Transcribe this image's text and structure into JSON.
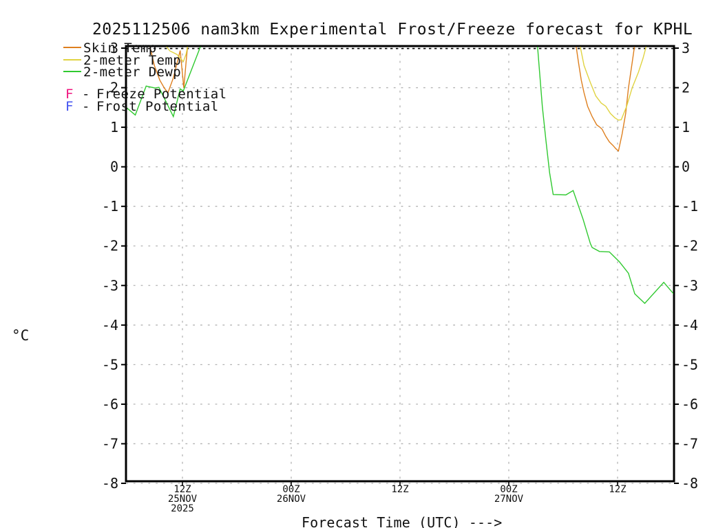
{
  "chart_data": {
    "type": "line",
    "title": "2025112506 nam3km Experimental Frost/Freeze forecast for KPHL",
    "xlabel": "Forecast Time (UTC) --->",
    "ylabel": "°C",
    "ylim": [
      -8,
      3
    ],
    "x_axis_span": "06Z 25NOV2025 to 18Z 27NOV2025 (hours from run start)",
    "grid": true,
    "legend_position": "top-left",
    "y_ticks": [
      3,
      2,
      1,
      0,
      -1,
      -2,
      -3,
      -4,
      -5,
      -6,
      -7,
      -8
    ],
    "x_ticks": [
      {
        "hour": 6,
        "lines": [
          "12Z",
          "25NOV",
          "2025"
        ]
      },
      {
        "hour": 18,
        "lines": [
          "00Z",
          "26NOV"
        ]
      },
      {
        "hour": 30,
        "lines": [
          "12Z"
        ]
      },
      {
        "hour": 42,
        "lines": [
          "00Z",
          "27NOV"
        ]
      },
      {
        "hour": 54,
        "lines": [
          "12Z"
        ]
      }
    ],
    "series": [
      {
        "name": "Skin Temp",
        "color": "#de7f1e",
        "segments": [
          [
            [
              2.2,
              3.25
            ],
            [
              2.9,
              2.56
            ],
            [
              3.5,
              2.19
            ],
            [
              4.0,
              1.99
            ],
            [
              4.4,
              1.87
            ],
            [
              5.0,
              2.25
            ],
            [
              5.5,
              2.71
            ],
            [
              5.75,
              2.94
            ],
            [
              6.15,
              1.99
            ],
            [
              6.4,
              2.65
            ],
            [
              6.65,
              3.25
            ]
          ],
          [
            [
              49.3,
              3.25
            ],
            [
              49.7,
              2.62
            ],
            [
              50.0,
              2.19
            ],
            [
              50.3,
              1.87
            ],
            [
              50.7,
              1.53
            ],
            [
              51.2,
              1.27
            ],
            [
              51.7,
              1.06
            ],
            [
              52.0,
              1.01
            ],
            [
              52.3,
              0.95
            ],
            [
              52.7,
              0.77
            ],
            [
              53.1,
              0.63
            ],
            [
              53.5,
              0.54
            ],
            [
              53.8,
              0.46
            ],
            [
              54.1,
              0.4
            ],
            [
              54.5,
              0.83
            ],
            [
              54.9,
              1.35
            ],
            [
              55.2,
              1.99
            ],
            [
              55.6,
              2.62
            ],
            [
              56.0,
              3.25
            ]
          ]
        ]
      },
      {
        "name": "2-meter Temp",
        "color": "#e0d341",
        "segments": [
          [
            [
              3.7,
              3.2
            ],
            [
              4.6,
              2.93
            ],
            [
              5.4,
              2.84
            ],
            [
              5.9,
              2.71
            ],
            [
              6.1,
              2.66
            ],
            [
              6.4,
              2.85
            ],
            [
              6.7,
              3.2
            ]
          ],
          [
            [
              49.7,
              3.25
            ],
            [
              50.3,
              2.56
            ],
            [
              51.0,
              2.13
            ],
            [
              51.6,
              1.79
            ],
            [
              52.2,
              1.61
            ],
            [
              52.7,
              1.53
            ],
            [
              53.2,
              1.35
            ],
            [
              53.7,
              1.24
            ],
            [
              54.1,
              1.18
            ],
            [
              54.4,
              1.19
            ],
            [
              55.0,
              1.53
            ],
            [
              55.6,
              1.99
            ],
            [
              56.3,
              2.39
            ],
            [
              56.8,
              2.74
            ],
            [
              57.4,
              3.25
            ]
          ]
        ]
      },
      {
        "name": "2-meter Dewp",
        "color": "#2fc92f",
        "segments": [
          [
            [
              -0.2,
              1.5
            ],
            [
              0.8,
              1.31
            ],
            [
              2.0,
              2.04
            ],
            [
              3.0,
              1.99
            ],
            [
              3.4,
              2.01
            ],
            [
              5.0,
              1.27
            ],
            [
              5.75,
              1.97
            ],
            [
              6.1,
              1.92
            ],
            [
              8.35,
              3.25
            ]
          ],
          [
            [
              45.1,
              3.25
            ],
            [
              45.7,
              1.53
            ],
            [
              46.1,
              0.66
            ],
            [
              46.5,
              -0.15
            ],
            [
              46.9,
              -0.7
            ],
            [
              48.3,
              -0.71
            ],
            [
              49.1,
              -0.6
            ],
            [
              50.2,
              -1.33
            ],
            [
              51.0,
              -1.94
            ],
            [
              51.2,
              -2.04
            ],
            [
              52.0,
              -2.14
            ],
            [
              53.1,
              -2.15
            ],
            [
              54.2,
              -2.4
            ],
            [
              55.2,
              -2.69
            ],
            [
              55.9,
              -3.21
            ],
            [
              57.0,
              -3.45
            ],
            [
              59.1,
              -2.92
            ],
            [
              60.3,
              -3.24
            ]
          ]
        ]
      }
    ],
    "flags": [
      {
        "letter": "F",
        "dash": "-",
        "label": "Freeze Potential",
        "color": "#ef137e"
      },
      {
        "letter": "F",
        "dash": "-",
        "label": "Frost Potential",
        "color": "#4050ef"
      }
    ]
  }
}
